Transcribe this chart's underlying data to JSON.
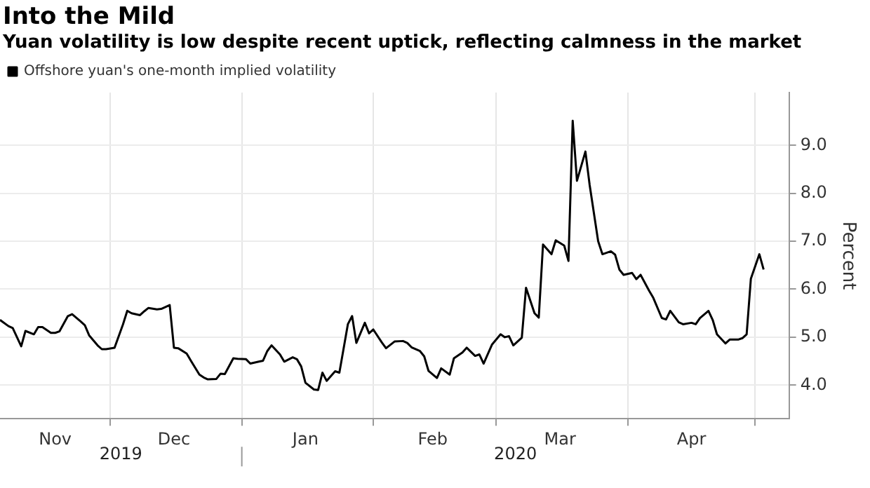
{
  "chart_data": {
    "type": "line",
    "title": "Into the Mild",
    "subtitle": "Yuan volatility is low despite recent uptick, reflecting calmness in the market",
    "ylabel": "Percent",
    "legend": "top left",
    "grid": true,
    "marker": "none",
    "line_style": "solid",
    "xlim": [
      "2019-11-05",
      "2020-05-09"
    ],
    "ylim": [
      3.3,
      10.1
    ],
    "yticks": [
      {
        "value": 4,
        "label": "4.0"
      },
      {
        "value": 5,
        "label": "5.0"
      },
      {
        "value": 6,
        "label": "6.0"
      },
      {
        "value": 7,
        "label": "7.0"
      },
      {
        "value": 8,
        "label": "8.0"
      },
      {
        "value": 9,
        "label": "9.0"
      }
    ],
    "xticks": [
      {
        "value": "2019-11-18",
        "label": "Nov"
      },
      {
        "value": "2019-12-01",
        "label": null
      },
      {
        "value": "2019-12-16",
        "label": "Dec"
      },
      {
        "value": "2020-01-01",
        "label": null
      },
      {
        "value": "2020-01-16",
        "label": "Jan"
      },
      {
        "value": "2020-02-01",
        "label": null
      },
      {
        "value": "2020-02-15",
        "label": "Feb"
      },
      {
        "value": "2020-03-01",
        "label": null
      },
      {
        "value": "2020-03-16",
        "label": "Mar"
      },
      {
        "value": "2020-04-01",
        "label": null
      },
      {
        "value": "2020-04-16",
        "label": "Apr"
      },
      {
        "value": "2020-05-01",
        "label": null
      }
    ],
    "annotations": [
      "2019",
      "2020"
    ],
    "series": [
      {
        "name": "Offshore yuan's one-month implied volatility",
        "color": "#000000",
        "x": [
          "2019-11-05",
          "2019-11-07",
          "2019-11-08",
          "2019-11-10",
          "2019-11-11",
          "2019-11-13",
          "2019-11-14",
          "2019-11-15",
          "2019-11-17",
          "2019-11-18",
          "2019-11-19",
          "2019-11-21",
          "2019-11-22",
          "2019-11-24",
          "2019-11-25",
          "2019-11-26",
          "2019-11-28",
          "2019-11-29",
          "2019-11-30",
          "2019-12-02",
          "2019-12-04",
          "2019-12-05",
          "2019-12-06",
          "2019-12-08",
          "2019-12-09",
          "2019-12-10",
          "2019-12-12",
          "2019-12-13",
          "2019-12-15",
          "2019-12-16",
          "2019-12-17",
          "2019-12-19",
          "2019-12-20",
          "2019-12-22",
          "2019-12-23",
          "2019-12-24",
          "2019-12-26",
          "2019-12-27",
          "2019-12-28",
          "2019-12-30",
          "2019-12-31",
          "2020-01-02",
          "2020-01-03",
          "2020-01-05",
          "2020-01-06",
          "2020-01-07",
          "2020-01-08",
          "2020-01-10",
          "2020-01-11",
          "2020-01-13",
          "2020-01-14",
          "2020-01-15",
          "2020-01-16",
          "2020-01-18",
          "2020-01-19",
          "2020-01-20",
          "2020-01-21",
          "2020-01-23",
          "2020-01-24",
          "2020-01-26",
          "2020-01-27",
          "2020-01-28",
          "2020-01-30",
          "2020-01-31",
          "2020-02-01",
          "2020-02-03",
          "2020-02-04",
          "2020-02-06",
          "2020-02-08",
          "2020-02-09",
          "2020-02-10",
          "2020-02-12",
          "2020-02-13",
          "2020-02-14",
          "2020-02-16",
          "2020-02-17",
          "2020-02-19",
          "2020-02-20",
          "2020-02-22",
          "2020-02-23",
          "2020-02-25",
          "2020-02-26",
          "2020-02-27",
          "2020-02-29",
          "2020-03-02",
          "2020-03-03",
          "2020-03-04",
          "2020-03-05",
          "2020-03-07",
          "2020-03-08",
          "2020-03-10",
          "2020-03-11",
          "2020-03-12",
          "2020-03-14",
          "2020-03-15",
          "2020-03-17",
          "2020-03-18",
          "2020-03-19",
          "2020-03-20",
          "2020-03-22",
          "2020-03-23",
          "2020-03-25",
          "2020-03-26",
          "2020-03-28",
          "2020-03-29",
          "2020-03-30",
          "2020-03-31",
          "2020-04-02",
          "2020-04-03",
          "2020-04-04",
          "2020-04-06",
          "2020-04-07",
          "2020-04-09",
          "2020-04-10",
          "2020-04-11",
          "2020-04-13",
          "2020-04-14",
          "2020-04-16",
          "2020-04-17",
          "2020-04-18",
          "2020-04-20",
          "2020-04-21",
          "2020-04-22",
          "2020-04-24",
          "2020-04-25",
          "2020-04-27",
          "2020-04-28",
          "2020-04-29",
          "2020-04-30",
          "2020-05-02",
          "2020-05-03"
        ],
        "values": [
          5.36,
          5.23,
          5.19,
          4.81,
          5.13,
          5.06,
          5.21,
          5.21,
          5.09,
          5.09,
          5.12,
          5.44,
          5.48,
          5.33,
          5.25,
          5.04,
          4.83,
          4.75,
          4.75,
          4.78,
          5.27,
          5.55,
          5.5,
          5.46,
          5.54,
          5.61,
          5.58,
          5.59,
          5.67,
          4.78,
          4.77,
          4.66,
          4.51,
          4.22,
          4.16,
          4.12,
          4.13,
          4.24,
          4.23,
          4.56,
          4.55,
          4.54,
          4.45,
          4.49,
          4.51,
          4.71,
          4.83,
          4.64,
          4.49,
          4.58,
          4.54,
          4.39,
          4.05,
          3.91,
          3.9,
          4.26,
          4.09,
          4.29,
          4.26,
          5.27,
          5.44,
          4.88,
          5.3,
          5.08,
          5.16,
          4.89,
          4.77,
          4.91,
          4.92,
          4.88,
          4.79,
          4.71,
          4.6,
          4.3,
          4.15,
          4.35,
          4.22,
          4.56,
          4.68,
          4.78,
          4.61,
          4.64,
          4.45,
          4.85,
          5.06,
          5.0,
          5.02,
          4.83,
          4.99,
          6.03,
          5.5,
          5.41,
          6.93,
          6.73,
          7.02,
          6.91,
          6.59,
          9.51,
          8.26,
          8.87,
          8.17,
          7.0,
          6.73,
          6.79,
          6.72,
          6.41,
          6.3,
          6.34,
          6.21,
          6.3,
          5.97,
          5.82,
          5.4,
          5.37,
          5.55,
          5.31,
          5.27,
          5.3,
          5.27,
          5.4,
          5.55,
          5.36,
          5.06,
          4.87,
          4.95,
          4.95,
          4.98,
          5.06,
          6.22,
          6.73,
          6.41
        ]
      }
    ]
  }
}
